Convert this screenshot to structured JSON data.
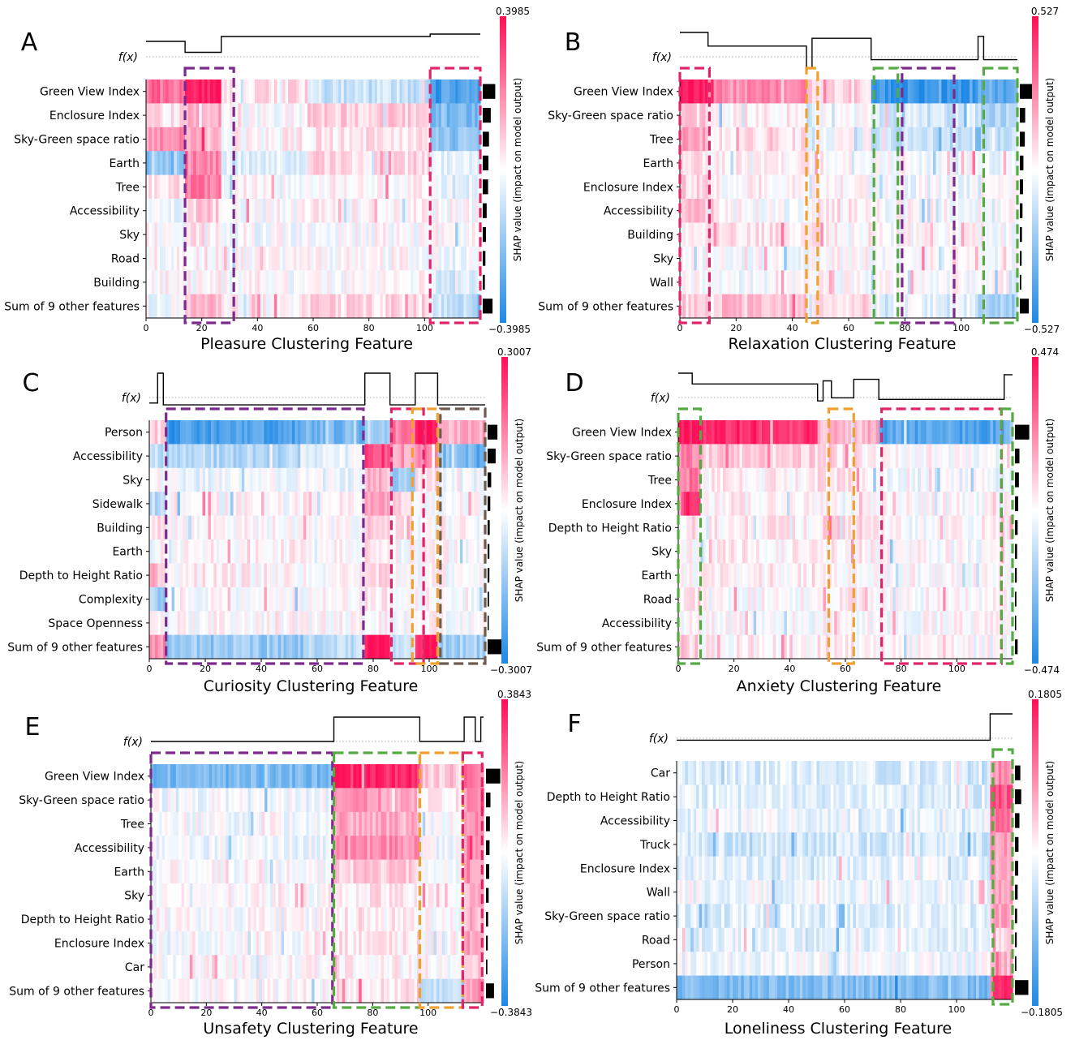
{
  "colors": {
    "neg": "#1e88e5",
    "pos": "#ff0d57",
    "purple": "#7b2a8c",
    "pink": "#e0246a",
    "orange": "#f0a030",
    "green": "#55aa44",
    "brown": "#6f5a4e"
  },
  "common": {
    "fx_label": "f(x)",
    "cbar_label": "SHAP value (impact on model output)"
  },
  "chart_data": [
    {
      "type": "heatmap",
      "panel_label": "A",
      "title": "Pleasure Clustering Feature",
      "features": [
        "Green View Index",
        "Enclosure Index",
        "Sky-Green space ratio",
        "Earth",
        "Tree",
        "Accessibility",
        "Sky",
        "Road",
        "Building",
        "Sum of 9 other features"
      ],
      "n_instances": 120,
      "xticks": [
        0,
        20,
        40,
        60,
        80,
        100
      ],
      "xlim": [
        0,
        120
      ],
      "clim": [
        -0.3985,
        0.3985
      ],
      "cbar_max_label": "0.3985",
      "cbar_min_label": "−0.3985",
      "importance": [
        0.7,
        0.45,
        0.35,
        0.32,
        0.3,
        0.22,
        0.18,
        0.15,
        0.12,
        0.55
      ],
      "fx_segments": [
        [
          0,
          0.7
        ],
        [
          14,
          0.25
        ],
        [
          27,
          0.9
        ],
        [
          102,
          1.0
        ]
      ],
      "clusters": [
        {
          "start": 0,
          "end": 14,
          "vals": [
            0.6,
            0.1,
            0.45,
            -0.55,
            0.1,
            -0.05,
            0.0,
            0.0,
            0.0,
            -0.05
          ]
        },
        {
          "start": 14,
          "end": 27,
          "vals": [
            0.95,
            0.35,
            0.3,
            0.5,
            0.55,
            0.2,
            0.1,
            0.05,
            0.05,
            0.3
          ]
        },
        {
          "start": 27,
          "end": 58,
          "vals": [
            0.12,
            0.0,
            0.05,
            -0.12,
            0.02,
            0.0,
            -0.03,
            0.0,
            0.0,
            0.05
          ]
        },
        {
          "start": 58,
          "end": 102,
          "vals": [
            -0.25,
            0.2,
            0.1,
            0.15,
            0.05,
            0.03,
            0.0,
            0.0,
            0.0,
            0.15
          ]
        },
        {
          "start": 102,
          "end": 120,
          "vals": [
            -0.8,
            -0.6,
            -0.5,
            -0.1,
            -0.1,
            0.0,
            0.0,
            -0.05,
            -0.15,
            -0.25
          ]
        }
      ],
      "boxes": [
        {
          "x0": 14,
          "x1": 31.5,
          "color": "purple"
        },
        {
          "x0": 102,
          "x1": 120,
          "color": "pink"
        }
      ]
    },
    {
      "type": "heatmap",
      "panel_label": "B",
      "title": "Relaxation Clustering Feature",
      "features": [
        "Green View Index",
        "Sky-Green space ratio",
        "Tree",
        "Earth",
        "Enclosure Index",
        "Accessibility",
        "Building",
        "Sky",
        "Wall",
        "Sum of 9 other features"
      ],
      "n_instances": 120,
      "xticks": [
        0,
        20,
        40,
        60,
        80,
        100
      ],
      "xlim": [
        0,
        120
      ],
      "clim": [
        -0.527,
        0.527
      ],
      "cbar_max_label": "0.527",
      "cbar_min_label": "−0.527",
      "importance": [
        0.75,
        0.3,
        0.28,
        0.2,
        0.18,
        0.15,
        0.12,
        0.1,
        0.08,
        0.5
      ],
      "fx_segments": [
        [
          0,
          1.0
        ],
        [
          10,
          0.65
        ],
        [
          45,
          0.1
        ],
        [
          47,
          0.85
        ],
        [
          68,
          0.3
        ],
        [
          106,
          0.9
        ],
        [
          108,
          0.3
        ]
      ],
      "clusters": [
        {
          "start": 0,
          "end": 10,
          "vals": [
            0.95,
            0.2,
            0.35,
            0.1,
            0.2,
            0.25,
            0.05,
            0.0,
            0.0,
            0.2
          ]
        },
        {
          "start": 10,
          "end": 45,
          "vals": [
            0.45,
            0.05,
            0.08,
            0.05,
            0.05,
            0.0,
            0.1,
            0.0,
            0.0,
            0.25
          ]
        },
        {
          "start": 45,
          "end": 47,
          "vals": [
            0.4,
            -0.2,
            -0.2,
            0.1,
            -0.1,
            0.0,
            0.0,
            0.0,
            0.0,
            -0.2
          ]
        },
        {
          "start": 47,
          "end": 68,
          "vals": [
            0.2,
            -0.05,
            -0.05,
            0.05,
            0.0,
            0.05,
            0.05,
            0.0,
            0.0,
            0.15
          ]
        },
        {
          "start": 68,
          "end": 106,
          "vals": [
            -0.9,
            -0.2,
            -0.25,
            0.0,
            -0.05,
            0.0,
            0.0,
            0.0,
            0.0,
            -0.1
          ]
        },
        {
          "start": 106,
          "end": 120,
          "vals": [
            -0.7,
            -0.35,
            -0.3,
            -0.1,
            0.1,
            0.0,
            0.0,
            0.0,
            0.0,
            -0.4
          ]
        }
      ],
      "boxes": [
        {
          "x0": 0,
          "x1": 10.5,
          "color": "pink"
        },
        {
          "x0": 45,
          "x1": 49,
          "color": "orange"
        },
        {
          "x0": 69,
          "x1": 77.5,
          "color": "green"
        },
        {
          "x0": 79,
          "x1": 97.5,
          "color": "purple"
        },
        {
          "x0": 108,
          "x1": 120,
          "color": "green"
        }
      ]
    },
    {
      "type": "heatmap",
      "panel_label": "C",
      "title": "Curiosity Clustering Feature",
      "features": [
        "Person",
        "Accessibility",
        "Sky",
        "Sidewalk",
        "Building",
        "Earth",
        "Depth to Height Ratio",
        "Complexity",
        "Space Openness",
        "Sum of 9 other features"
      ],
      "n_instances": 120,
      "xticks": [
        0,
        20,
        40,
        60,
        80,
        100
      ],
      "xlim": [
        0,
        120
      ],
      "clim": [
        -0.3007,
        0.3007
      ],
      "cbar_max_label": "0.3007",
      "cbar_min_label": "−0.3007",
      "importance": [
        0.55,
        0.45,
        0.2,
        0.15,
        0.12,
        0.1,
        0.1,
        0.08,
        0.06,
        0.8
      ],
      "fx_segments": [
        [
          0,
          0.2
        ],
        [
          3,
          1.0
        ],
        [
          5,
          0.15
        ],
        [
          77,
          1.0
        ],
        [
          86,
          0.15
        ],
        [
          95,
          1.0
        ],
        [
          103,
          0.15
        ]
      ],
      "clusters": [
        {
          "start": 0,
          "end": 6,
          "vals": [
            0.2,
            -0.3,
            0.0,
            -0.3,
            0.1,
            0.0,
            0.2,
            -0.4,
            0.0,
            0.5
          ]
        },
        {
          "start": 6,
          "end": 55,
          "vals": [
            -0.8,
            -0.35,
            -0.05,
            0.0,
            0.0,
            0.05,
            0.05,
            0.0,
            0.0,
            -0.45
          ]
        },
        {
          "start": 55,
          "end": 77,
          "vals": [
            -0.6,
            -0.1,
            -0.05,
            0.05,
            0.0,
            0.0,
            0.0,
            0.0,
            0.0,
            -0.3
          ]
        },
        {
          "start": 77,
          "end": 86,
          "vals": [
            -0.35,
            0.75,
            0.3,
            0.35,
            0.2,
            0.1,
            0.15,
            0.1,
            0.05,
            0.95
          ]
        },
        {
          "start": 86,
          "end": 95,
          "vals": [
            0.55,
            0.4,
            -0.4,
            0.1,
            0.1,
            0.0,
            0.0,
            0.0,
            0.0,
            -0.2
          ]
        },
        {
          "start": 95,
          "end": 103,
          "vals": [
            0.95,
            0.55,
            0.1,
            -0.1,
            0.0,
            0.0,
            0.0,
            0.0,
            0.0,
            0.95
          ]
        },
        {
          "start": 103,
          "end": 120,
          "vals": [
            0.35,
            -0.55,
            -0.05,
            0.0,
            0.0,
            0.0,
            0.0,
            0.0,
            0.0,
            -0.4
          ]
        }
      ],
      "boxes": [
        {
          "x0": 6,
          "x1": 76.5,
          "color": "purple"
        },
        {
          "x0": 86.5,
          "x1": 98,
          "color": "pink"
        },
        {
          "x0": 94,
          "x1": 103,
          "color": "orange"
        },
        {
          "x0": 104,
          "x1": 120,
          "color": "brown"
        }
      ]
    },
    {
      "type": "heatmap",
      "panel_label": "D",
      "title": "Anxiety Clustering Feature",
      "features": [
        "Green View Index",
        "Sky-Green space ratio",
        "Tree",
        "Enclosure Index",
        "Depth to Height Ratio",
        "Sky",
        "Earth",
        "Road",
        "Accessibility",
        "Sum of 9 other features"
      ],
      "n_instances": 120,
      "xticks": [
        0,
        20,
        40,
        60,
        80,
        100
      ],
      "xlim": [
        0,
        120
      ],
      "clim": [
        -0.474,
        0.474
      ],
      "cbar_max_label": "0.474",
      "cbar_min_label": "−0.474",
      "importance": [
        0.8,
        0.25,
        0.22,
        0.18,
        0.15,
        0.12,
        0.1,
        0.08,
        0.06,
        0.15
      ],
      "fx_segments": [
        [
          0,
          1.0
        ],
        [
          5,
          0.65
        ],
        [
          50,
          0.1
        ],
        [
          52,
          0.75
        ],
        [
          55,
          0.2
        ],
        [
          63,
          0.8
        ],
        [
          72,
          0.15
        ],
        [
          117,
          0.95
        ]
      ],
      "clusters": [
        {
          "start": 0,
          "end": 8,
          "vals": [
            0.95,
            0.5,
            0.55,
            0.85,
            0.1,
            0.0,
            0.0,
            0.1,
            0.0,
            0.2
          ]
        },
        {
          "start": 8,
          "end": 50,
          "vals": [
            0.85,
            0.2,
            0.05,
            0.05,
            0.08,
            0.05,
            0.05,
            0.0,
            0.0,
            0.05
          ]
        },
        {
          "start": 50,
          "end": 72,
          "vals": [
            0.3,
            0.1,
            0.1,
            0.0,
            0.15,
            0.05,
            0.0,
            0.05,
            0.0,
            0.05
          ]
        },
        {
          "start": 72,
          "end": 117,
          "vals": [
            -0.75,
            0.0,
            -0.05,
            0.0,
            0.0,
            0.0,
            0.0,
            0.0,
            0.0,
            0.0
          ]
        },
        {
          "start": 117,
          "end": 120,
          "vals": [
            -0.5,
            0.1,
            0.0,
            0.0,
            0.0,
            0.0,
            0.0,
            0.0,
            0.0,
            0.0
          ]
        }
      ],
      "boxes": [
        {
          "x0": 0,
          "x1": 8,
          "color": "green"
        },
        {
          "x0": 54,
          "x1": 63,
          "color": "orange"
        },
        {
          "x0": 73,
          "x1": 116,
          "color": "pink"
        },
        {
          "x0": 116,
          "x1": 120,
          "color": "green"
        }
      ]
    },
    {
      "type": "heatmap",
      "panel_label": "E",
      "title": "Unsafety Clustering Feature",
      "features": [
        "Green View Index",
        "Sky-Green space ratio",
        "Tree",
        "Accessibility",
        "Earth",
        "Sky",
        "Depth to Height Ratio",
        "Enclosure Index",
        "Car",
        "Sum of 9 other features"
      ],
      "n_instances": 120,
      "xticks": [
        0,
        20,
        40,
        60,
        80,
        100
      ],
      "xlim": [
        0,
        120
      ],
      "clim": [
        -0.3843,
        0.3843
      ],
      "cbar_max_label": "0.3843",
      "cbar_min_label": "−0.3843",
      "importance": [
        0.8,
        0.25,
        0.22,
        0.2,
        0.18,
        0.15,
        0.12,
        0.1,
        0.08,
        0.45
      ],
      "fx_segments": [
        [
          0,
          0.25
        ],
        [
          66,
          1.0
        ],
        [
          97,
          0.25
        ],
        [
          113,
          1.0
        ],
        [
          117,
          0.25
        ],
        [
          119,
          1.0
        ]
      ],
      "clusters": [
        {
          "start": 0,
          "end": 66,
          "vals": [
            -0.6,
            -0.05,
            -0.03,
            -0.05,
            0.0,
            0.0,
            0.0,
            0.0,
            0.0,
            0.0
          ]
        },
        {
          "start": 66,
          "end": 97,
          "vals": [
            0.9,
            0.4,
            0.35,
            0.45,
            0.2,
            0.1,
            0.1,
            0.1,
            0.05,
            0.1
          ]
        },
        {
          "start": 97,
          "end": 113,
          "vals": [
            0.2,
            0.1,
            0.0,
            -0.05,
            0.0,
            0.0,
            0.0,
            0.0,
            0.0,
            -0.3
          ]
        },
        {
          "start": 113,
          "end": 120,
          "vals": [
            0.6,
            0.45,
            0.45,
            0.5,
            0.45,
            0.3,
            0.3,
            0.35,
            0.2,
            0.4
          ]
        }
      ],
      "boxes": [
        {
          "x0": 0,
          "x1": 65.5,
          "color": "purple"
        },
        {
          "x0": 66,
          "x1": 97,
          "color": "green"
        },
        {
          "x0": 97,
          "x1": 112.5,
          "color": "orange"
        },
        {
          "x0": 112.5,
          "x1": 119.5,
          "color": "pink"
        }
      ]
    },
    {
      "type": "heatmap",
      "panel_label": "F",
      "title": "Loneliness Clustering Feature",
      "features": [
        "Car",
        "Depth to Height Ratio",
        "Accessibility",
        "Truck",
        "Enclosure Index",
        "Wall",
        "Sky-Green space ratio",
        "Road",
        "Person",
        "Sum of 9 other features"
      ],
      "n_instances": 120,
      "xticks": [
        0,
        20,
        40,
        60,
        80,
        100
      ],
      "xlim": [
        0,
        120
      ],
      "clim": [
        -0.1805,
        0.1805
      ],
      "cbar_max_label": "0.1805",
      "cbar_min_label": "−0.1805",
      "importance": [
        0.3,
        0.35,
        0.25,
        0.2,
        0.18,
        0.15,
        0.12,
        0.1,
        0.08,
        0.75
      ],
      "fx_segments": [
        [
          0,
          0.1
        ],
        [
          112,
          1.0
        ]
      ],
      "clusters": [
        {
          "start": 0,
          "end": 112,
          "vals": [
            -0.15,
            -0.15,
            -0.08,
            -0.2,
            -0.1,
            -0.05,
            -0.15,
            -0.1,
            -0.05,
            -0.55
          ]
        },
        {
          "start": 112,
          "end": 120,
          "vals": [
            0.45,
            0.7,
            0.6,
            0.4,
            0.35,
            0.4,
            0.35,
            0.2,
            0.3,
            0.9
          ]
        }
      ],
      "boxes": [
        {
          "x0": 113,
          "x1": 120,
          "color": "green"
        }
      ]
    }
  ]
}
